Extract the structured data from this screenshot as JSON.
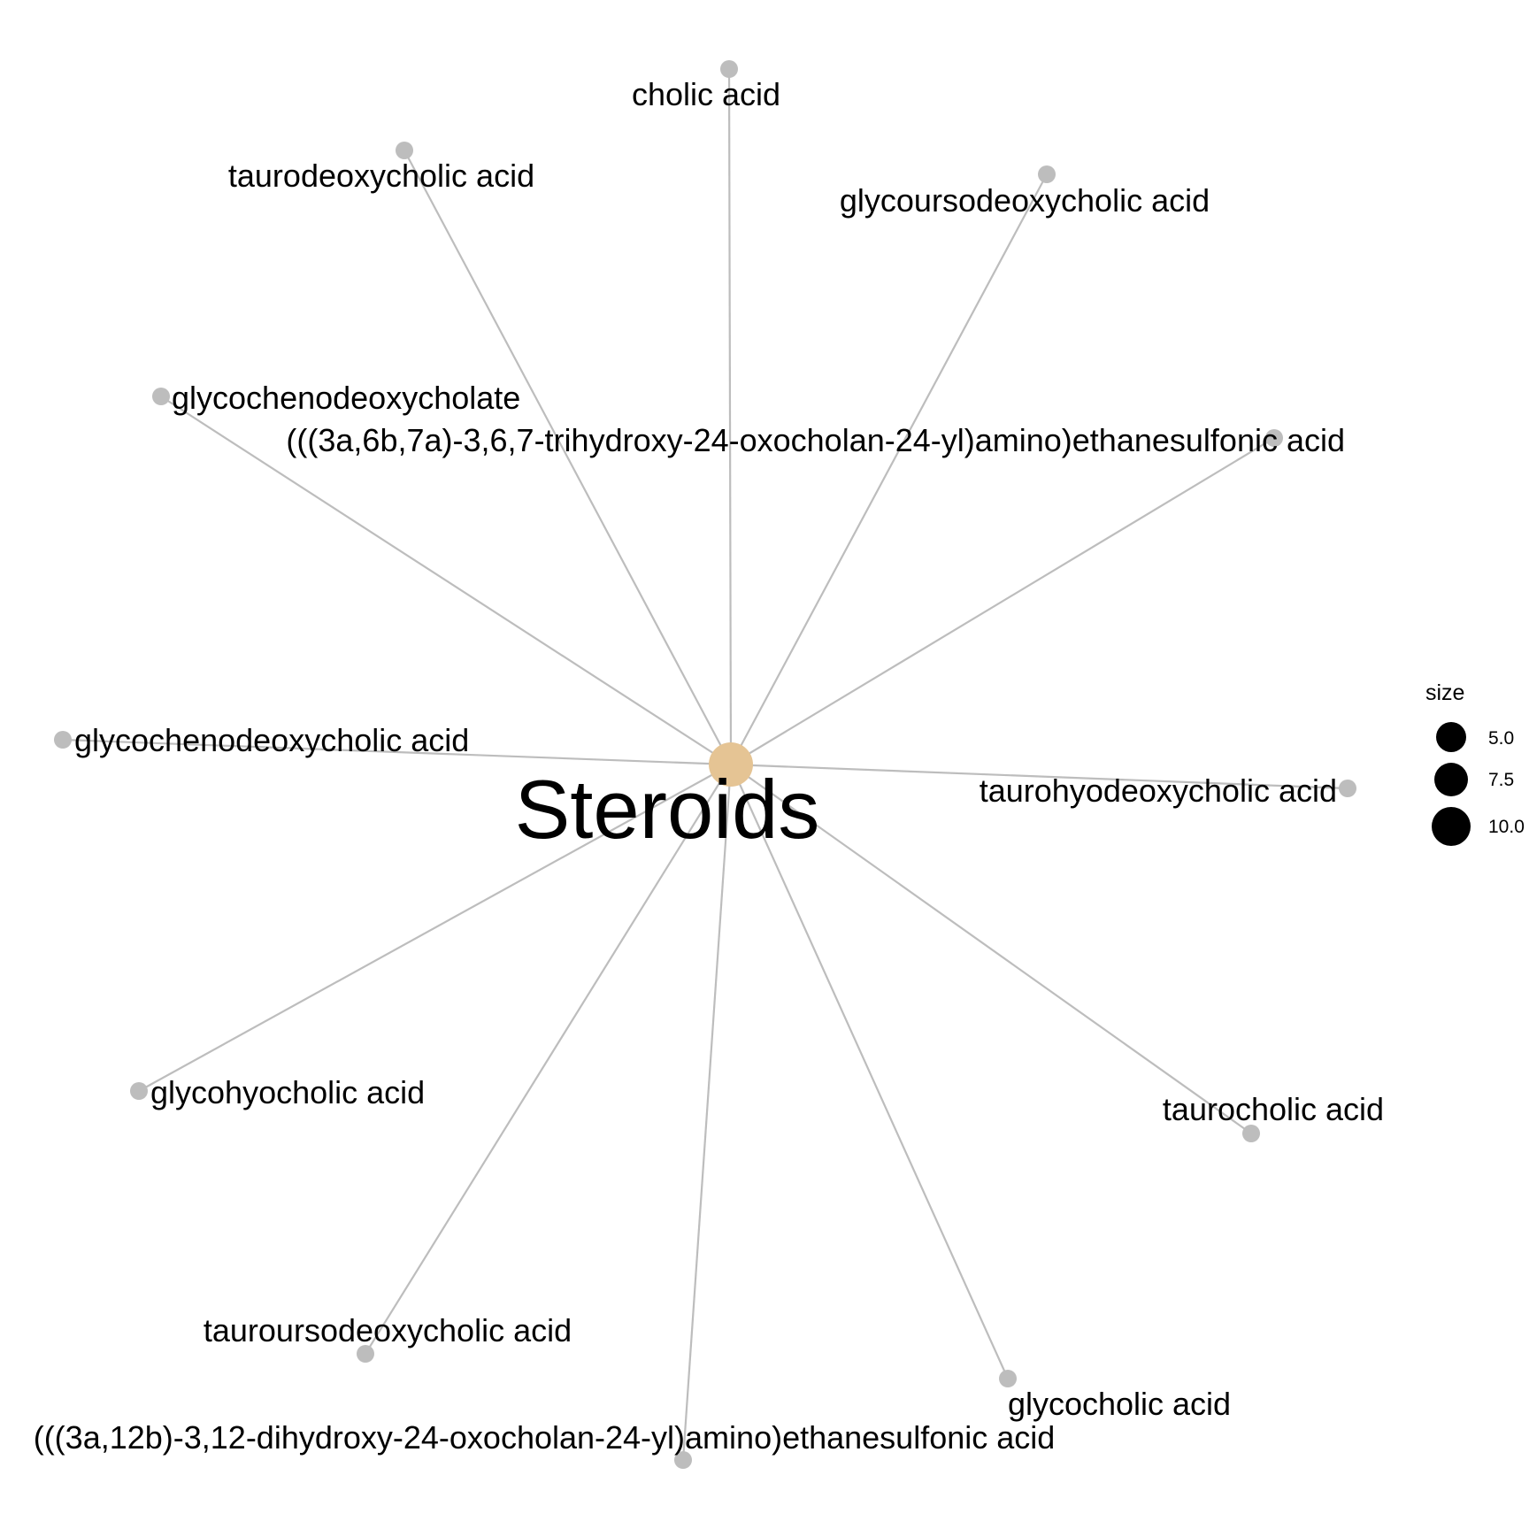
{
  "diagram": {
    "center": {
      "label": "Steroids",
      "color": "#e5c494"
    },
    "edge_color": "#bdbdbd",
    "leaf_color": "#bdbdbd",
    "nodes": [
      {
        "id": "cholic-acid",
        "label": "cholic acid"
      },
      {
        "id": "taurodeoxycholic-acid",
        "label": "taurodeoxycholic acid"
      },
      {
        "id": "glycoursodeoxycholic-acid",
        "label": "glycoursodeoxycholic acid"
      },
      {
        "id": "glycochenodeoxycholate",
        "label": "glycochenodeoxycholate"
      },
      {
        "id": "trihydroxy-ethanesulfonic-acid",
        "label": "(((3a,6b,7a)-3,6,7-trihydroxy-24-oxocholan-24-yl)amino)ethanesulfonic acid"
      },
      {
        "id": "glycochenodeoxycholic-acid",
        "label": "glycochenodeoxycholic acid"
      },
      {
        "id": "taurohyodeoxycholic-acid",
        "label": "taurohyodeoxycholic acid"
      },
      {
        "id": "glycohyocholic-acid",
        "label": "glycohyocholic acid"
      },
      {
        "id": "taurocholic-acid",
        "label": "taurocholic acid"
      },
      {
        "id": "tauroursodeoxycholic-acid",
        "label": "tauroursodeoxycholic acid"
      },
      {
        "id": "glycocholic-acid",
        "label": "glycocholic acid"
      },
      {
        "id": "dihydroxy-ethanesulfonic-acid",
        "label": "(((3a,12b)-3,12-dihydroxy-24-oxocholan-24-yl)amino)ethanesulfonic acid"
      }
    ]
  },
  "legend": {
    "title": "size",
    "entries": [
      {
        "label": "5.0",
        "size": 5.0
      },
      {
        "label": "7.5",
        "size": 7.5
      },
      {
        "label": "10.0",
        "size": 10.0
      }
    ]
  }
}
